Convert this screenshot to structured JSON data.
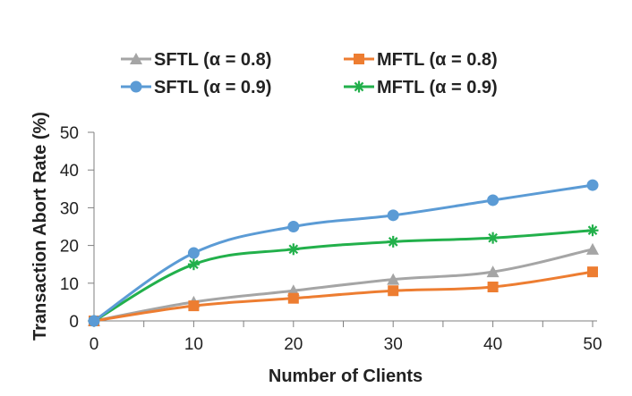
{
  "chart_data": {
    "type": "line",
    "x": [
      0,
      10,
      20,
      30,
      40,
      50
    ],
    "xlabel": "Number of Clients",
    "ylabel": "Transaction Abort Rate (%)",
    "xlim": [
      0,
      50
    ],
    "ylim": [
      0,
      50
    ],
    "xticks": [
      "0",
      "10",
      "20",
      "30",
      "40",
      "50"
    ],
    "yticks": [
      "0",
      "10",
      "20",
      "30",
      "40",
      "50"
    ],
    "grid": false,
    "legend_position": "top",
    "series": [
      {
        "name": "SFTL (α = 0.8)",
        "values": [
          0,
          5,
          8,
          11,
          13,
          19
        ],
        "color": "#a5a5a5",
        "marker": "triangle"
      },
      {
        "name": "MFTL (α = 0.8)",
        "values": [
          0,
          4,
          6,
          8,
          9,
          13
        ],
        "color": "#ed7d31",
        "marker": "square"
      },
      {
        "name": "SFTL (α = 0.9)",
        "values": [
          0,
          18,
          25,
          28,
          32,
          36
        ],
        "color": "#5b9bd5",
        "marker": "circle"
      },
      {
        "name": "MFTL (α = 0.9)",
        "values": [
          0,
          15,
          19,
          21,
          22,
          24
        ],
        "color": "#22b04b",
        "marker": "star"
      }
    ]
  }
}
